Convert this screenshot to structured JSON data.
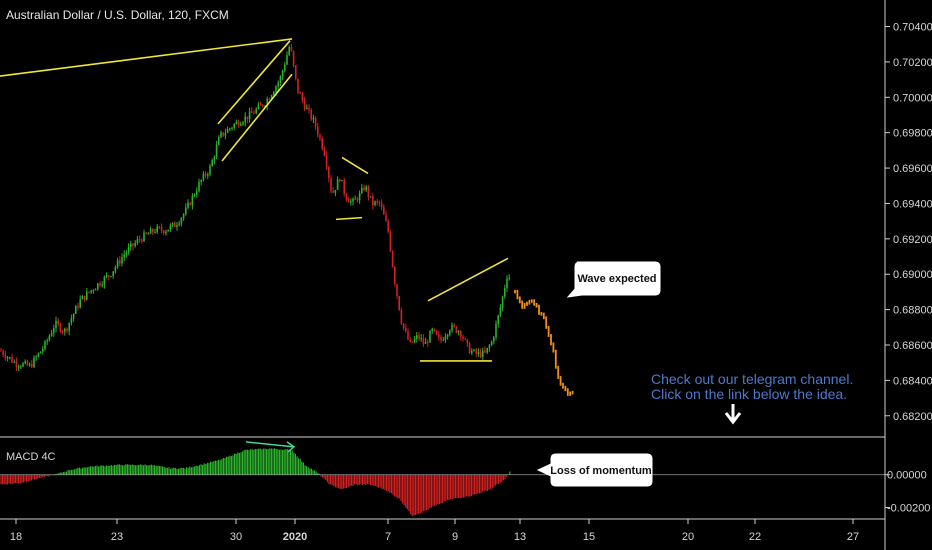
{
  "title": "Australian Dollar / U.S. Dollar, 120, FXCM",
  "indicator_label": "MACD 4C",
  "bubbles": {
    "wave": "Wave expected",
    "momentum": "Loss of momentum"
  },
  "note": {
    "line1": "Check out our telegram channel.",
    "line2": "Click on the link below the idea."
  },
  "colors": {
    "background": "#000000",
    "up": "#2bb52b",
    "down": "#d42121",
    "projection": "#ef8f1b",
    "trendline": "#f2e53a",
    "macd_arrow": "#45d49a",
    "note": "#4f78c9"
  },
  "chart_data": [
    {
      "type": "candlestick",
      "title": "Australian Dollar / U.S. Dollar, 120, FXCM",
      "x_ticks": [
        "18",
        "23",
        "30",
        "2020",
        "7",
        "9",
        "13",
        "15",
        "20",
        "22",
        "27"
      ],
      "y_ticks": [
        "0.70400",
        "0.70200",
        "0.70000",
        "0.69800",
        "0.69600",
        "0.69400",
        "0.69200",
        "0.69000",
        "0.68800",
        "0.68600",
        "0.68400",
        "0.68200"
      ],
      "ylim": [
        0.6808,
        0.7055
      ],
      "price_path": [
        [
          0,
          0.6857
        ],
        [
          15,
          0.685
        ],
        [
          30,
          0.6848
        ],
        [
          45,
          0.686
        ],
        [
          55,
          0.6872
        ],
        [
          65,
          0.6868
        ],
        [
          80,
          0.6885
        ],
        [
          95,
          0.6893
        ],
        [
          110,
          0.69
        ],
        [
          125,
          0.6912
        ],
        [
          140,
          0.692
        ],
        [
          155,
          0.6925
        ],
        [
          165,
          0.6925
        ],
        [
          175,
          0.6928
        ],
        [
          185,
          0.6935
        ],
        [
          200,
          0.6952
        ],
        [
          210,
          0.696
        ],
        [
          220,
          0.6978
        ],
        [
          235,
          0.6985
        ],
        [
          250,
          0.699
        ],
        [
          265,
          0.6997
        ],
        [
          280,
          0.701
        ],
        [
          290,
          0.703
        ],
        [
          297,
          0.7005
        ],
        [
          305,
          0.6995
        ],
        [
          315,
          0.6985
        ],
        [
          325,
          0.6968
        ],
        [
          332,
          0.6945
        ],
        [
          340,
          0.6955
        ],
        [
          345,
          0.6945
        ],
        [
          352,
          0.694
        ],
        [
          360,
          0.6945
        ],
        [
          365,
          0.695
        ],
        [
          372,
          0.694
        ],
        [
          380,
          0.694
        ],
        [
          388,
          0.6925
        ],
        [
          395,
          0.6895
        ],
        [
          402,
          0.6872
        ],
        [
          410,
          0.686
        ],
        [
          418,
          0.6865
        ],
        [
          425,
          0.686
        ],
        [
          432,
          0.6868
        ],
        [
          440,
          0.6862
        ],
        [
          450,
          0.687
        ],
        [
          460,
          0.6868
        ],
        [
          468,
          0.6858
        ],
        [
          475,
          0.6855
        ],
        [
          485,
          0.6855
        ],
        [
          492,
          0.6862
        ],
        [
          500,
          0.688
        ],
        [
          508,
          0.6902
        ],
        [
          511,
          0.6893
        ]
      ],
      "projection_path": [
        [
          515,
          0.689
        ],
        [
          522,
          0.6882
        ],
        [
          530,
          0.6885
        ],
        [
          538,
          0.688
        ],
        [
          545,
          0.6873
        ],
        [
          552,
          0.686
        ],
        [
          558,
          0.6842
        ],
        [
          563,
          0.6835
        ],
        [
          568,
          0.6833
        ],
        [
          574,
          0.6834
        ]
      ],
      "trendlines": [
        [
          [
            0,
            0.7012
          ],
          [
            292,
            0.7033
          ]
        ],
        [
          [
            218,
            0.6985
          ],
          [
            290,
            0.7032
          ]
        ],
        [
          [
            222,
            0.6964
          ],
          [
            292,
            0.7013
          ]
        ],
        [
          [
            342,
            0.6966
          ],
          [
            368,
            0.6957
          ]
        ],
        [
          [
            336,
            0.6931
          ],
          [
            362,
            0.6932
          ]
        ],
        [
          [
            428,
            0.6885
          ],
          [
            508,
            0.6909
          ]
        ],
        [
          [
            420,
            0.6851
          ],
          [
            492,
            0.6851
          ]
        ]
      ]
    },
    {
      "type": "histogram",
      "label": "MACD 4C",
      "y_ticks": [
        "0.00000",
        "-0.00200"
      ],
      "ylim": [
        -0.0027,
        0.0023
      ],
      "value_path": [
        [
          0,
          -0.0006
        ],
        [
          20,
          -0.0005
        ],
        [
          40,
          -0.0002
        ],
        [
          55,
          0.0
        ],
        [
          70,
          0.0003
        ],
        [
          90,
          0.0005
        ],
        [
          120,
          0.0006
        ],
        [
          150,
          0.0006
        ],
        [
          170,
          0.0004
        ],
        [
          185,
          0.0004
        ],
        [
          200,
          0.0006
        ],
        [
          220,
          0.0009
        ],
        [
          245,
          0.0015
        ],
        [
          270,
          0.0016
        ],
        [
          292,
          0.0015
        ],
        [
          305,
          0.0006
        ],
        [
          318,
          0.0001
        ],
        [
          330,
          -0.0006
        ],
        [
          342,
          -0.0009
        ],
        [
          355,
          -0.0006
        ],
        [
          370,
          -0.0006
        ],
        [
          385,
          -0.0009
        ],
        [
          400,
          -0.0015
        ],
        [
          412,
          -0.0025
        ],
        [
          422,
          -0.0023
        ],
        [
          435,
          -0.0019
        ],
        [
          450,
          -0.0015
        ],
        [
          470,
          -0.0013
        ],
        [
          490,
          -0.0009
        ],
        [
          505,
          -0.0003
        ],
        [
          510,
          0.0002
        ]
      ],
      "momentum_arrow": [
        [
          246,
          0.002
        ],
        [
          294,
          0.0017
        ]
      ]
    }
  ]
}
